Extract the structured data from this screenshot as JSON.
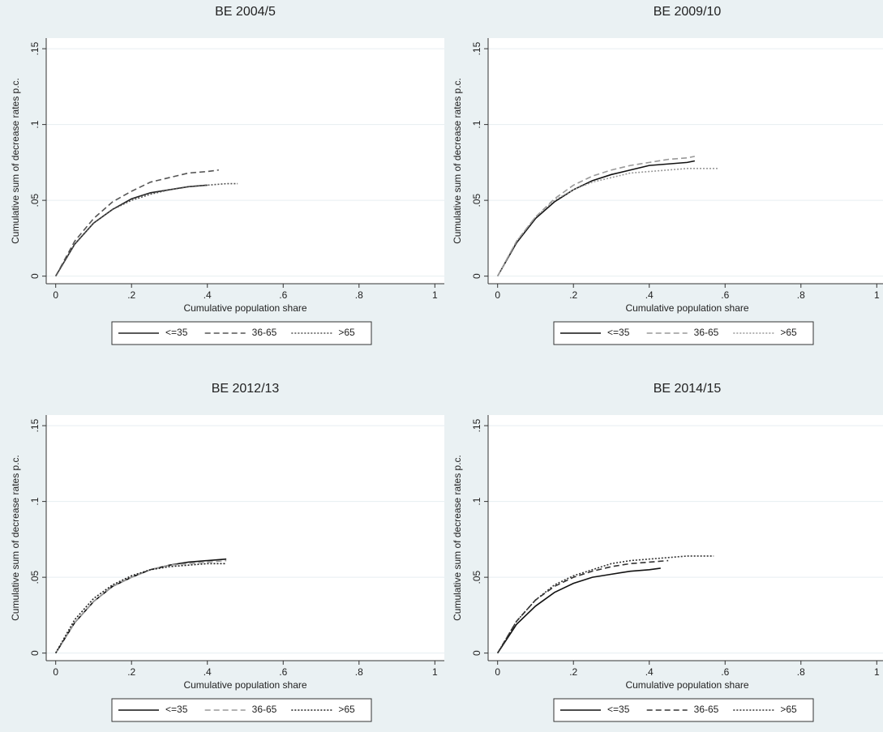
{
  "chart_data": [
    {
      "type": "line",
      "title": "BE 2004/5",
      "x_label": "Cumulative population share",
      "y_label": "Cumulative sum of decrease rates p.c.",
      "xlim": [
        -0.025,
        1.025
      ],
      "ylim": [
        -0.005,
        0.157
      ],
      "xticks": [
        0,
        {
          "value": 0.2,
          "label": ".2"
        },
        {
          "value": 0.4,
          "label": ".4"
        },
        {
          "value": 0.6,
          "label": ".6"
        },
        {
          "value": 0.8,
          "label": ".8"
        },
        1
      ],
      "yticks": [
        0,
        {
          "value": 0.05,
          "label": ".05"
        },
        {
          "value": 0.1,
          "label": ".1"
        },
        {
          "value": 0.15,
          "label": ".15"
        }
      ],
      "grid": true,
      "legend": "bottom",
      "series": [
        {
          "name": "<=35",
          "color": "#222222",
          "dash": "solid",
          "x": [
            0,
            0.05,
            0.1,
            0.15,
            0.2,
            0.25,
            0.3,
            0.35,
            0.4
          ],
          "values": [
            0,
            0.021,
            0.035,
            0.044,
            0.051,
            0.055,
            0.057,
            0.059,
            0.06
          ]
        },
        {
          "name": "36-65",
          "color": "#555555",
          "dash": "dash",
          "x": [
            0,
            0.05,
            0.1,
            0.15,
            0.2,
            0.25,
            0.3,
            0.35,
            0.4,
            0.43
          ],
          "values": [
            0,
            0.023,
            0.038,
            0.049,
            0.056,
            0.062,
            0.065,
            0.068,
            0.069,
            0.07
          ]
        },
        {
          "name": ">65",
          "color": "#555555",
          "dash": "dot",
          "x": [
            0,
            0.05,
            0.1,
            0.15,
            0.2,
            0.25,
            0.3,
            0.35,
            0.4,
            0.45,
            0.48
          ],
          "values": [
            0,
            0.021,
            0.035,
            0.044,
            0.05,
            0.054,
            0.057,
            0.059,
            0.06,
            0.061,
            0.061
          ]
        }
      ]
    },
    {
      "type": "line",
      "title": "BE 2009/10",
      "x_label": "Cumulative population share",
      "y_label": "Cumulative sum of decrease rates p.c.",
      "xlim": [
        -0.025,
        1.025
      ],
      "ylim": [
        -0.005,
        0.157
      ],
      "xticks": [
        0,
        {
          "value": 0.2,
          "label": ".2"
        },
        {
          "value": 0.4,
          "label": ".4"
        },
        {
          "value": 0.6,
          "label": ".6"
        },
        {
          "value": 0.8,
          "label": ".8"
        },
        1
      ],
      "yticks": [
        0,
        {
          "value": 0.05,
          "label": ".05"
        },
        {
          "value": 0.1,
          "label": ".1"
        },
        {
          "value": 0.15,
          "label": ".15"
        }
      ],
      "grid": true,
      "legend": "bottom",
      "series": [
        {
          "name": "<=35",
          "color": "#111111",
          "dash": "solid",
          "x": [
            0,
            0.05,
            0.1,
            0.15,
            0.2,
            0.25,
            0.3,
            0.35,
            0.4,
            0.45,
            0.5,
            0.52
          ],
          "values": [
            0,
            0.022,
            0.038,
            0.049,
            0.057,
            0.063,
            0.067,
            0.07,
            0.073,
            0.074,
            0.075,
            0.076
          ]
        },
        {
          "name": "36-65",
          "color": "#999999",
          "dash": "dash",
          "x": [
            0,
            0.05,
            0.1,
            0.15,
            0.2,
            0.25,
            0.3,
            0.35,
            0.4,
            0.45,
            0.5,
            0.52
          ],
          "values": [
            0,
            0.023,
            0.039,
            0.051,
            0.06,
            0.066,
            0.07,
            0.073,
            0.075,
            0.077,
            0.078,
            0.079
          ]
        },
        {
          "name": ">65",
          "color": "#999999",
          "dash": "dot",
          "x": [
            0,
            0.05,
            0.1,
            0.15,
            0.2,
            0.25,
            0.3,
            0.35,
            0.4,
            0.45,
            0.5,
            0.55,
            0.58
          ],
          "values": [
            0,
            0.023,
            0.039,
            0.05,
            0.057,
            0.062,
            0.065,
            0.068,
            0.069,
            0.07,
            0.071,
            0.071,
            0.071
          ]
        }
      ]
    },
    {
      "type": "line",
      "title": "BE 2012/13",
      "x_label": "Cumulative population share",
      "y_label": "Cumulative sum of decrease rates p.c.",
      "xlim": [
        -0.025,
        1.025
      ],
      "ylim": [
        -0.005,
        0.157
      ],
      "xticks": [
        0,
        {
          "value": 0.2,
          "label": ".2"
        },
        {
          "value": 0.4,
          "label": ".4"
        },
        {
          "value": 0.6,
          "label": ".6"
        },
        {
          "value": 0.8,
          "label": ".8"
        },
        1
      ],
      "yticks": [
        0,
        {
          "value": 0.05,
          "label": ".05"
        },
        {
          "value": 0.1,
          "label": ".1"
        },
        {
          "value": 0.15,
          "label": ".15"
        }
      ],
      "grid": true,
      "legend": "bottom",
      "series": [
        {
          "name": "<=35",
          "color": "#111111",
          "dash": "solid",
          "x": [
            0,
            0.05,
            0.1,
            0.15,
            0.2,
            0.25,
            0.3,
            0.35,
            0.4,
            0.45
          ],
          "values": [
            0,
            0.02,
            0.034,
            0.044,
            0.05,
            0.055,
            0.058,
            0.06,
            0.061,
            0.062
          ]
        },
        {
          "name": "36-65",
          "color": "#999999",
          "dash": "dash",
          "x": [
            0,
            0.05,
            0.1,
            0.15,
            0.2,
            0.25,
            0.3,
            0.35,
            0.4,
            0.45
          ],
          "values": [
            0,
            0.02,
            0.034,
            0.044,
            0.05,
            0.055,
            0.058,
            0.059,
            0.06,
            0.061
          ]
        },
        {
          "name": ">65",
          "color": "#222222",
          "dash": "dot",
          "x": [
            0,
            0.05,
            0.1,
            0.15,
            0.2,
            0.25,
            0.3,
            0.35,
            0.4,
            0.45
          ],
          "values": [
            0,
            0.022,
            0.036,
            0.045,
            0.051,
            0.055,
            0.057,
            0.058,
            0.059,
            0.059
          ]
        }
      ]
    },
    {
      "type": "line",
      "title": "BE 2014/15",
      "x_label": "Cumulative population share",
      "y_label": "Cumulative sum of decrease rates p.c.",
      "xlim": [
        -0.025,
        1.025
      ],
      "ylim": [
        -0.005,
        0.157
      ],
      "xticks": [
        0,
        {
          "value": 0.2,
          "label": ".2"
        },
        {
          "value": 0.4,
          "label": ".4"
        },
        {
          "value": 0.6,
          "label": ".6"
        },
        {
          "value": 0.8,
          "label": ".8"
        },
        1
      ],
      "yticks": [
        0,
        {
          "value": 0.05,
          "label": ".05"
        },
        {
          "value": 0.1,
          "label": ".1"
        },
        {
          "value": 0.15,
          "label": ".15"
        }
      ],
      "grid": true,
      "legend": "bottom",
      "series": [
        {
          "name": "<=35",
          "color": "#111111",
          "dash": "solid",
          "x": [
            0,
            0.05,
            0.1,
            0.15,
            0.2,
            0.25,
            0.3,
            0.35,
            0.4,
            0.43
          ],
          "values": [
            0,
            0.019,
            0.031,
            0.04,
            0.046,
            0.05,
            0.052,
            0.054,
            0.055,
            0.056
          ]
        },
        {
          "name": "36-65",
          "color": "#333333",
          "dash": "dash",
          "x": [
            0,
            0.05,
            0.1,
            0.15,
            0.2,
            0.25,
            0.3,
            0.35,
            0.4,
            0.45
          ],
          "values": [
            0,
            0.021,
            0.035,
            0.044,
            0.05,
            0.054,
            0.057,
            0.059,
            0.06,
            0.061
          ]
        },
        {
          "name": ">65",
          "color": "#333333",
          "dash": "dot",
          "x": [
            0,
            0.05,
            0.1,
            0.15,
            0.2,
            0.25,
            0.3,
            0.35,
            0.4,
            0.45,
            0.5,
            0.55,
            0.57
          ],
          "values": [
            0,
            0.021,
            0.035,
            0.045,
            0.051,
            0.055,
            0.059,
            0.061,
            0.062,
            0.063,
            0.064,
            0.064,
            0.064
          ]
        }
      ]
    }
  ]
}
